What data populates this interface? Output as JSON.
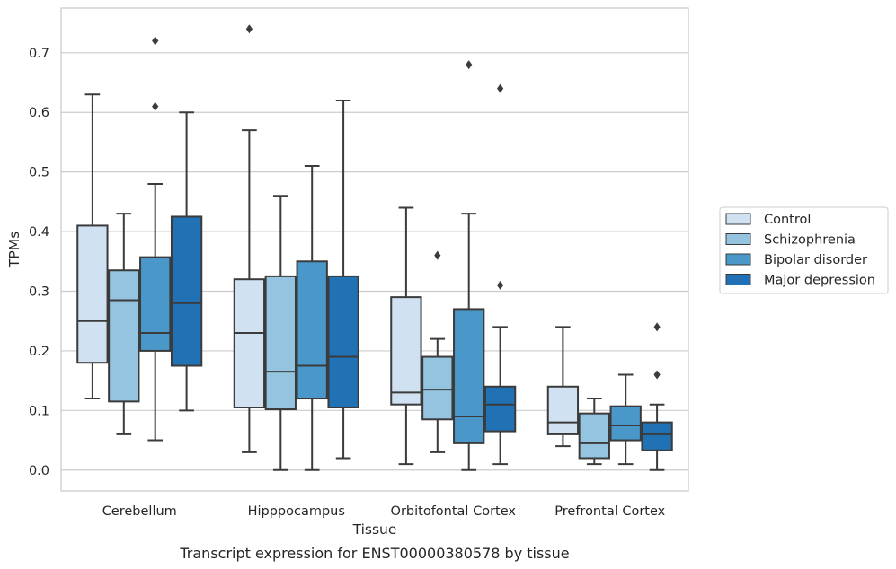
{
  "chart_data": {
    "type": "box",
    "caption": "Transcript expression for ENST00000380578 by tissue",
    "xlabel": "Tissue",
    "ylabel": "TPMs",
    "ylim": [
      -0.035,
      0.775
    ],
    "yticks": [
      "0.0",
      "0.1",
      "0.2",
      "0.3",
      "0.4",
      "0.5",
      "0.6",
      "0.7"
    ],
    "ytick_values": [
      0,
      0.1,
      0.2,
      0.3,
      0.4,
      0.5,
      0.6,
      0.7
    ],
    "grid": true,
    "legend_position": "right",
    "categories": [
      "Cerebellum",
      "Hipppocampus",
      "Orbitofontal Cortex",
      "Prefrontal Cortex"
    ],
    "series": [
      {
        "name": "Control",
        "color": "#d0e1f2",
        "boxes": [
          {
            "whislo": 0.12,
            "q1": 0.18,
            "med": 0.25,
            "q3": 0.41,
            "whishi": 0.63,
            "fliers": []
          },
          {
            "whislo": 0.03,
            "q1": 0.105,
            "med": 0.23,
            "q3": 0.32,
            "whishi": 0.57,
            "fliers": [
              0.74
            ]
          },
          {
            "whislo": 0.01,
            "q1": 0.11,
            "med": 0.13,
            "q3": 0.29,
            "whishi": 0.44,
            "fliers": []
          },
          {
            "whislo": 0.04,
            "q1": 0.06,
            "med": 0.08,
            "q3": 0.14,
            "whishi": 0.24,
            "fliers": []
          }
        ]
      },
      {
        "name": "Schizophrenia",
        "color": "#94c4df",
        "boxes": [
          {
            "whislo": 0.06,
            "q1": 0.115,
            "med": 0.285,
            "q3": 0.335,
            "whishi": 0.43,
            "fliers": []
          },
          {
            "whislo": 0.0,
            "q1": 0.102,
            "med": 0.165,
            "q3": 0.325,
            "whishi": 0.46,
            "fliers": []
          },
          {
            "whislo": 0.03,
            "q1": 0.085,
            "med": 0.135,
            "q3": 0.19,
            "whishi": 0.22,
            "fliers": [
              0.36
            ]
          },
          {
            "whislo": 0.01,
            "q1": 0.02,
            "med": 0.045,
            "q3": 0.095,
            "whishi": 0.12,
            "fliers": []
          }
        ]
      },
      {
        "name": "Bipolar disorder",
        "color": "#4a98c9",
        "boxes": [
          {
            "whislo": 0.05,
            "q1": 0.2,
            "med": 0.23,
            "q3": 0.357,
            "whishi": 0.48,
            "fliers": [
              0.61,
              0.72
            ]
          },
          {
            "whislo": 0.0,
            "q1": 0.12,
            "med": 0.175,
            "q3": 0.35,
            "whishi": 0.51,
            "fliers": []
          },
          {
            "whislo": 0.0,
            "q1": 0.045,
            "med": 0.09,
            "q3": 0.27,
            "whishi": 0.43,
            "fliers": [
              0.68
            ]
          },
          {
            "whislo": 0.01,
            "q1": 0.05,
            "med": 0.075,
            "q3": 0.107,
            "whishi": 0.16,
            "fliers": []
          }
        ]
      },
      {
        "name": "Major depression",
        "color": "#2171b5",
        "boxes": [
          {
            "whislo": 0.1,
            "q1": 0.175,
            "med": 0.28,
            "q3": 0.425,
            "whishi": 0.6,
            "fliers": []
          },
          {
            "whislo": 0.02,
            "q1": 0.105,
            "med": 0.19,
            "q3": 0.325,
            "whishi": 0.62,
            "fliers": []
          },
          {
            "whislo": 0.01,
            "q1": 0.065,
            "med": 0.11,
            "q3": 0.14,
            "whishi": 0.24,
            "fliers": [
              0.31,
              0.64
            ]
          },
          {
            "whislo": 0.0,
            "q1": 0.033,
            "med": 0.06,
            "q3": 0.08,
            "whishi": 0.11,
            "fliers": [
              0.16,
              0.24
            ]
          }
        ]
      }
    ],
    "colors": {
      "line": "#3b3b3b",
      "grid": "#cccccc",
      "frame": "#cccccc",
      "background": "#ffffff"
    }
  }
}
